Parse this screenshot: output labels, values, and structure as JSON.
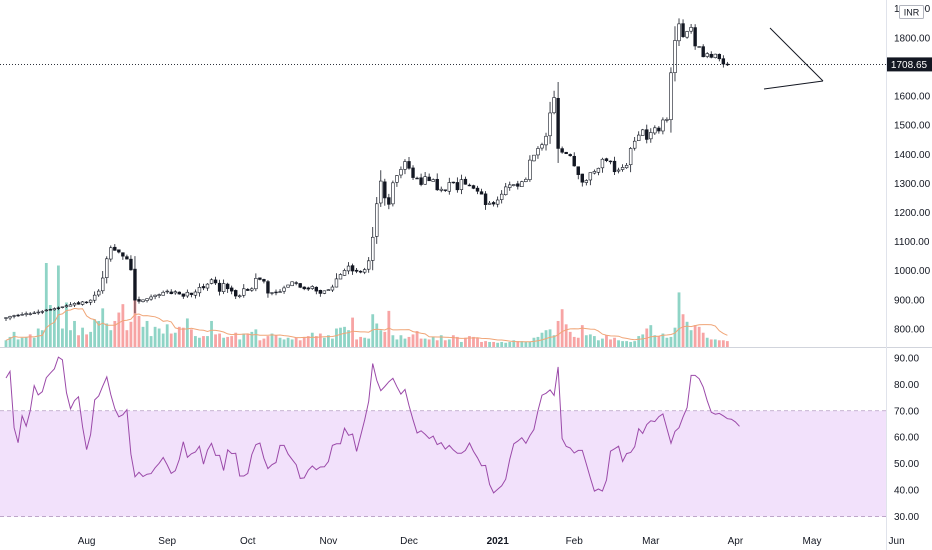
{
  "chart_data": {
    "type": "candlestick",
    "currency": "INR",
    "last_price": "1708.65",
    "price_axis": {
      "ylim": [
        738,
        1930
      ],
      "ticks": [
        "1900.00",
        "1800.00",
        "1700.00",
        "1600.00",
        "1500.00",
        "1400.00",
        "1300.00",
        "1200.00",
        "1100.00",
        "1000.00",
        "900.00",
        "800.00"
      ],
      "tick_values": [
        1900,
        1800,
        1700,
        1600,
        1500,
        1400,
        1300,
        1200,
        1100,
        1000,
        900,
        800
      ]
    },
    "rsi_axis": {
      "ylim": [
        26,
        93
      ],
      "ticks": [
        "90.00",
        "80.00",
        "70.00",
        "60.00",
        "50.00",
        "40.00",
        "30.00"
      ],
      "tick_values": [
        90,
        80,
        70,
        60,
        50,
        40,
        30
      ],
      "band": [
        30,
        70
      ]
    },
    "time_axis": {
      "labels": [
        "Aug",
        "Sep",
        "Oct",
        "Nov",
        "Dec",
        "2021",
        "Feb",
        "Mar",
        "Apr",
        "May",
        "Jun"
      ],
      "bold": [
        false,
        false,
        false,
        false,
        false,
        true,
        false,
        false,
        false,
        false,
        false
      ],
      "bar_index": [
        20,
        40,
        60,
        80,
        100,
        122,
        141,
        160,
        181,
        200,
        221
      ]
    },
    "close": [
      839,
      843,
      846,
      847,
      850,
      853,
      852,
      855,
      858,
      860,
      865,
      867,
      870,
      871,
      876,
      880,
      883,
      888,
      885,
      893,
      891,
      899,
      916,
      930,
      975,
      1041,
      1079,
      1070,
      1064,
      1050,
      1040,
      1003,
      899,
      895,
      900,
      904,
      910,
      916,
      918,
      926,
      930,
      921,
      928,
      920,
      912,
      926,
      918,
      927,
      943,
      941,
      954,
      969,
      958,
      929,
      956,
      938,
      930,
      913,
      914,
      938,
      932,
      938,
      974,
      970,
      964,
      923,
      925,
      924,
      928,
      941,
      951,
      962,
      958,
      943,
      938,
      937,
      946,
      930,
      922,
      931,
      935,
      944,
      972,
      987,
      1001,
      1016,
      999,
      998,
      995,
      1004,
      1034,
      1115,
      1230,
      1308,
      1250,
      1228,
      1302,
      1327,
      1348,
      1375,
      1352,
      1320,
      1317,
      1296,
      1323,
      1309,
      1313,
      1278,
      1280,
      1276,
      1303,
      1302,
      1278,
      1313,
      1297,
      1292,
      1283,
      1273,
      1263,
      1227,
      1232,
      1229,
      1243,
      1263,
      1288,
      1295,
      1296,
      1290,
      1306,
      1314,
      1380,
      1397,
      1420,
      1433,
      1462,
      1542,
      1595,
      1420,
      1407,
      1402,
      1395,
      1360,
      1330,
      1304,
      1310,
      1337,
      1341,
      1352,
      1383,
      1378,
      1374,
      1340,
      1346,
      1355,
      1362,
      1420,
      1445,
      1466,
      1484,
      1451,
      1475,
      1491,
      1480,
      1518,
      1520,
      1680,
      1791,
      1848,
      1804,
      1822,
      1836,
      1772,
      1770,
      1735,
      1746,
      1733,
      1744,
      1728,
      1710,
      1709
    ],
    "volume_norm": [
      0.08,
      0.12,
      0.18,
      0.09,
      0.11,
      0.12,
      0.15,
      0.11,
      0.22,
      0.2,
      1.0,
      0.5,
      0.45,
      0.97,
      0.22,
      0.53,
      0.2,
      0.31,
      0.14,
      0.23,
      0.15,
      0.18,
      0.33,
      0.31,
      0.46,
      0.28,
      0.2,
      0.31,
      0.41,
      0.51,
      0.2,
      0.3,
      0.89,
      0.37,
      0.24,
      0.31,
      0.13,
      0.24,
      0.22,
      0.16,
      0.27,
      0.16,
      0.17,
      0.24,
      0.23,
      0.34,
      0.21,
      0.13,
      0.11,
      0.13,
      0.13,
      0.31,
      0.15,
      0.16,
      0.11,
      0.12,
      0.13,
      0.17,
      0.09,
      0.16,
      0.16,
      0.18,
      0.21,
      0.08,
      0.1,
      0.13,
      0.16,
      0.14,
      0.11,
      0.09,
      0.11,
      0.09,
      0.11,
      0.08,
      0.12,
      0.13,
      0.17,
      0.13,
      0.16,
      0.11,
      0.14,
      0.1,
      0.22,
      0.23,
      0.24,
      0.2,
      0.35,
      0.09,
      0.12,
      0.11,
      0.1,
      0.39,
      0.28,
      0.2,
      0.18,
      0.43,
      0.14,
      0.09,
      0.14,
      0.1,
      0.12,
      0.15,
      0.19,
      0.1,
      0.1,
      0.09,
      0.12,
      0.08,
      0.14,
      0.08,
      0.09,
      0.14,
      0.12,
      0.06,
      0.11,
      0.13,
      0.12,
      0.11,
      0.06,
      0.07,
      0.06,
      0.06,
      0.05,
      0.06,
      0.05,
      0.06,
      0.08,
      0.07,
      0.07,
      0.06,
      0.06,
      0.11,
      0.12,
      0.17,
      0.2,
      0.21,
      0.14,
      0.31,
      0.45,
      0.27,
      0.18,
      0.12,
      0.11,
      0.26,
      0.14,
      0.15,
      0.13,
      0.08,
      0.1,
      0.14,
      0.09,
      0.11,
      0.08,
      0.07,
      0.07,
      0.06,
      0.07,
      0.13,
      0.15,
      0.22,
      0.26,
      0.14,
      0.13,
      0.16,
      0.11,
      0.12,
      0.23,
      0.65,
      0.39,
      0.3,
      0.2,
      0.26,
      0.24,
      0.17,
      0.11,
      0.09,
      0.09,
      0.08,
      0.08,
      0.07,
      0.07,
      0.08
    ],
    "rsi": [
      82.4,
      84.9,
      63.6,
      57.9,
      68.1,
      64.2,
      70.0,
      79.5,
      76.0,
      77.2,
      82.5,
      84.2,
      85.9,
      90.3,
      89.3,
      76.8,
      70.7,
      73.8,
      75.3,
      63.9,
      55.3,
      61.0,
      74.1,
      75.6,
      79.3,
      82.8,
      76.1,
      70.8,
      67.7,
      68.5,
      70.4,
      53.6,
      45.0,
      46.7,
      45.1,
      46.0,
      46.2,
      48.4,
      50.1,
      52.3,
      49.5,
      46.3,
      47.3,
      51.6,
      58.3,
      52.4,
      53.7,
      54.4,
      56.6,
      49.8,
      55.1,
      57.7,
      53.1,
      53.1,
      47.4,
      55.2,
      53.8,
      53.9,
      45.3,
      45.3,
      46.3,
      53.4,
      57.2,
      57.8,
      52.0,
      48.1,
      49.6,
      50.4,
      56.9,
      56.9,
      53.6,
      51.6,
      49.6,
      44.4,
      44.6,
      47.5,
      49.1,
      47.7,
      48.7,
      48.8,
      50.8,
      56.9,
      57.5,
      57.5,
      63.4,
      60.7,
      61.2,
      54.6,
      60.5,
      66.6,
      73.6,
      87.9,
      81.5,
      77.6,
      79.2,
      81.0,
      82.3,
      79.1,
      76.3,
      78.1,
      72.0,
      66.6,
      61.6,
      62.4,
      61.1,
      59.5,
      60.4,
      57.2,
      57.9,
      55.5,
      56.9,
      55.2,
      53.9,
      53.9,
      55.0,
      57.8,
      54.6,
      52.2,
      49.2,
      49.3,
      42.1,
      38.9,
      40.3,
      41.6,
      44.1,
      51.7,
      57.5,
      58.5,
      59.8,
      57.7,
      60.6,
      62.9,
      70.1,
      75.9,
      76.6,
      77.9,
      75.8,
      86.6,
      59.5,
      56.5,
      55.9,
      54.0,
      55.0,
      55.0,
      49.9,
      44.5,
      39.6,
      40.4,
      39.6,
      43.8,
      54.7,
      55.6,
      56.6,
      50.8,
      53.8,
      54.2,
      56.4,
      63.2,
      61.4,
      64.8,
      66.2,
      65.9,
      67.8,
      68.8,
      63.3,
      57.7,
      62.2,
      63.6,
      67.6,
      71.2,
      83.4,
      83.4,
      82.1,
      79.0,
      73.8,
      69.4,
      68.7,
      69.0,
      68.1,
      67.0,
      66.8,
      65.8,
      64.1
    ]
  }
}
